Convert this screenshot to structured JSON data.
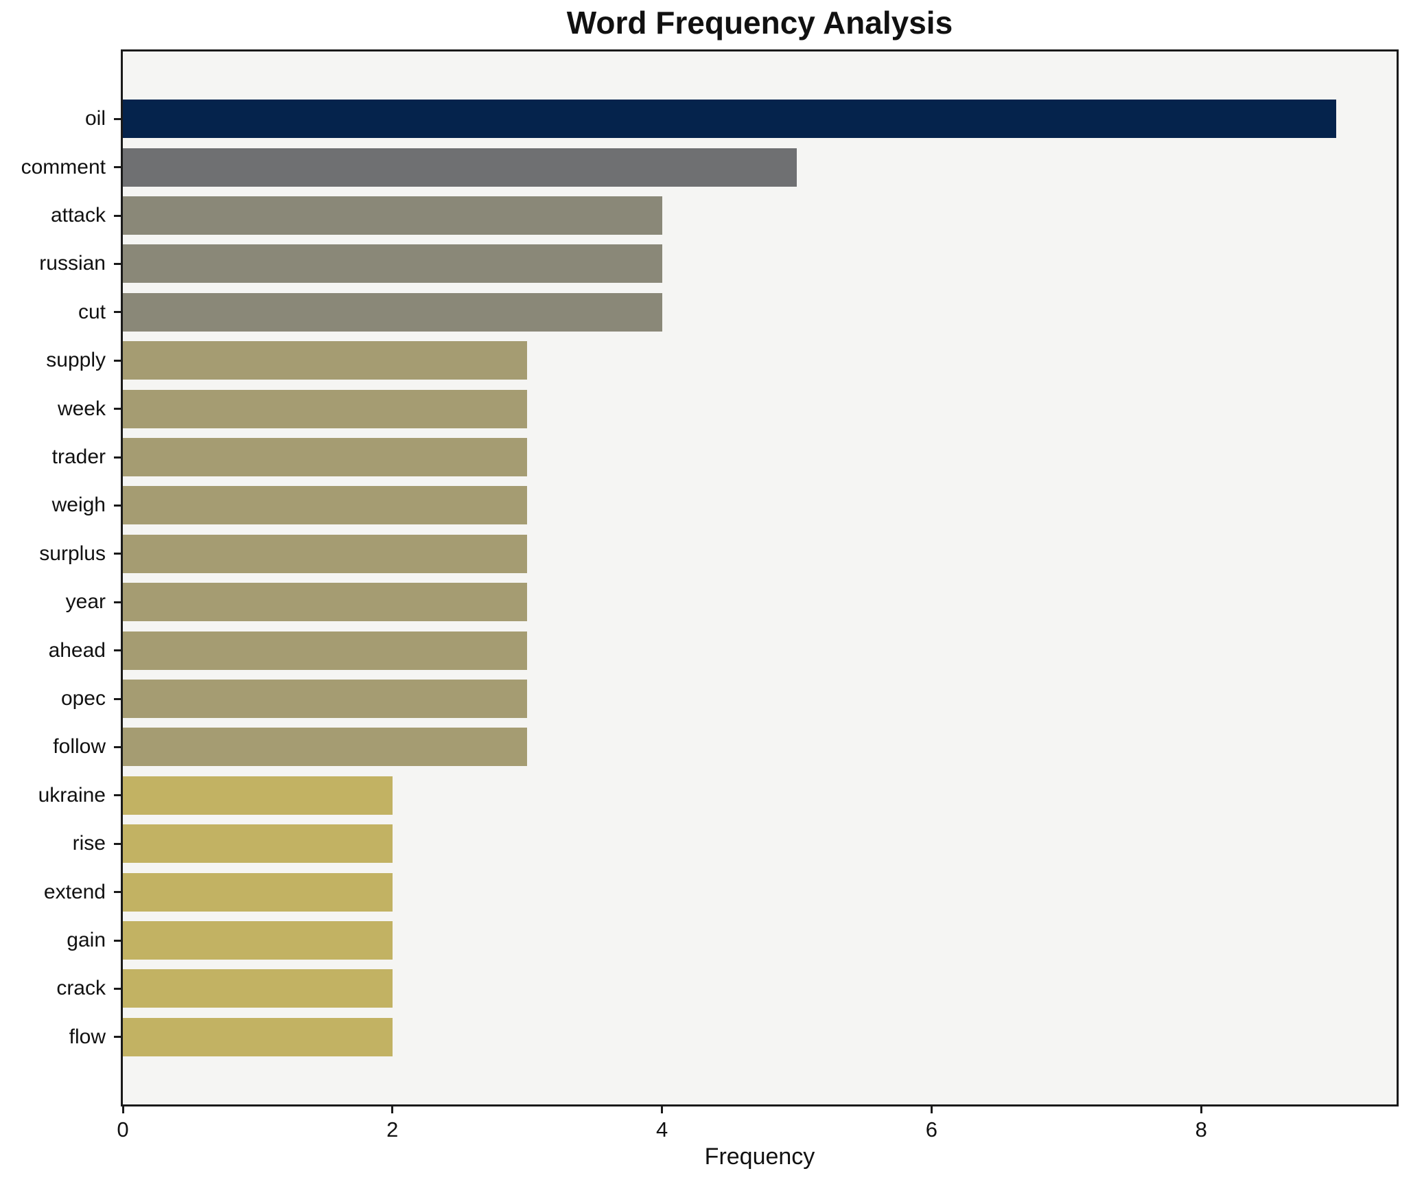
{
  "chart_data": {
    "type": "bar",
    "orientation": "horizontal",
    "title": "Word Frequency Analysis",
    "xlabel": "Frequency",
    "ylabel": "",
    "categories": [
      "oil",
      "comment",
      "attack",
      "russian",
      "cut",
      "supply",
      "week",
      "trader",
      "weigh",
      "surplus",
      "year",
      "ahead",
      "opec",
      "follow",
      "ukraine",
      "rise",
      "extend",
      "gain",
      "crack",
      "flow"
    ],
    "values": [
      9,
      5,
      4,
      4,
      4,
      3,
      3,
      3,
      3,
      3,
      3,
      3,
      3,
      3,
      2,
      2,
      2,
      2,
      2,
      2
    ],
    "xlim": [
      0,
      9.45
    ],
    "x_ticks": [
      0,
      2,
      4,
      6,
      8
    ],
    "x_tick_labels": [
      "0",
      "2",
      "4",
      "6",
      "8"
    ],
    "grid": false,
    "legend": false,
    "colors": {
      "plot_background": "#f5f5f3",
      "figure_background": "#ffffff",
      "axis_spine": "#1a1a1a",
      "text": "#111111",
      "bars_by_value": {
        "9": "#05234c",
        "5": "#6f7072",
        "4": "#8a8878",
        "3": "#a59c72",
        "2": "#c2b263"
      }
    }
  }
}
